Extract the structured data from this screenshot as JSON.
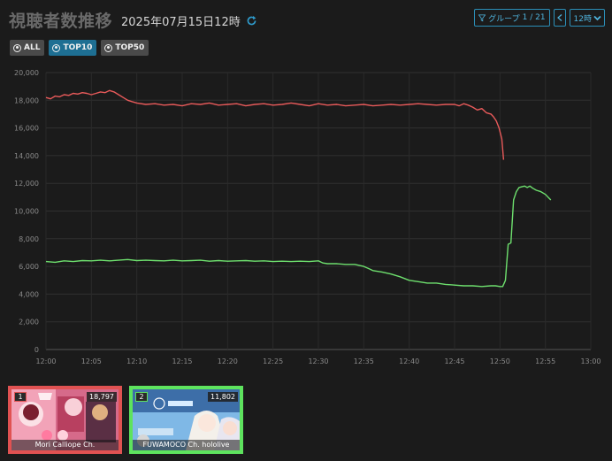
{
  "header": {
    "title": "視聴者数推移",
    "datetime": "2025年07月15日12時"
  },
  "controls": {
    "group_label": "グループ",
    "group_page": "1 / 21",
    "hour_selected": "12時"
  },
  "filters": [
    {
      "label": "ALL",
      "active": false
    },
    {
      "label": "TOP10",
      "active": true
    },
    {
      "label": "TOP50",
      "active": false
    }
  ],
  "colors": {
    "series_1": "#e85a5a",
    "series_2": "#6ee06e",
    "accent": "#2b8fb8"
  },
  "chart_data": {
    "type": "line",
    "title": "",
    "xlabel": "",
    "ylabel": "",
    "xlim": [
      "12:00",
      "13:00"
    ],
    "ylim": [
      0,
      20000
    ],
    "grid": true,
    "x_ticks": [
      "12:00",
      "12:05",
      "12:10",
      "12:15",
      "12:20",
      "12:25",
      "12:30",
      "12:35",
      "12:40",
      "12:45",
      "12:50",
      "12:55",
      "13:00"
    ],
    "y_ticks": [
      "0",
      "2,000",
      "4,000",
      "6,000",
      "8,000",
      "10,000",
      "12,000",
      "14,000",
      "16,000",
      "18,000",
      "20,000"
    ],
    "series": [
      {
        "color": "#e85a5a",
        "x": [
          0,
          0.5,
          1,
          1.5,
          2,
          2.5,
          3,
          3.5,
          4,
          4.5,
          5,
          5.5,
          6,
          6.5,
          7,
          7.5,
          8,
          8.5,
          9,
          9.5,
          10,
          11,
          12,
          13,
          14,
          15,
          16,
          17,
          18,
          19,
          20,
          21,
          22,
          23,
          24,
          25,
          26,
          27,
          28,
          29,
          30,
          31,
          32,
          33,
          34,
          35,
          36,
          37,
          38,
          39,
          40,
          41,
          42,
          43,
          44,
          45,
          45.5,
          46,
          46.5,
          47,
          47.5,
          48,
          48.5,
          49,
          49.3,
          49.6,
          49.9,
          50.2,
          50.4
        ],
        "values": [
          18200,
          18100,
          18300,
          18250,
          18400,
          18350,
          18500,
          18450,
          18550,
          18500,
          18400,
          18500,
          18600,
          18550,
          18700,
          18600,
          18400,
          18200,
          18000,
          17900,
          17800,
          17700,
          17750,
          17650,
          17700,
          17600,
          17750,
          17700,
          17800,
          17650,
          17700,
          17750,
          17600,
          17700,
          17750,
          17650,
          17700,
          17800,
          17700,
          17600,
          17750,
          17650,
          17700,
          17600,
          17650,
          17700,
          17600,
          17650,
          17700,
          17650,
          17700,
          17750,
          17700,
          17650,
          17700,
          17700,
          17600,
          17750,
          17650,
          17500,
          17300,
          17400,
          17100,
          17000,
          16800,
          16500,
          16000,
          15200,
          13700
        ]
      },
      {
        "color": "#6ee06e",
        "x": [
          0,
          1,
          2,
          3,
          4,
          5,
          6,
          7,
          8,
          9,
          10,
          11,
          12,
          13,
          14,
          15,
          16,
          17,
          18,
          19,
          20,
          21,
          22,
          23,
          24,
          25,
          26,
          27,
          28,
          29,
          30,
          30.5,
          31,
          32,
          33,
          34,
          35,
          35.5,
          36,
          37,
          38,
          39,
          40,
          41,
          42,
          43,
          44,
          45,
          46,
          47,
          48,
          49,
          49.5,
          50,
          50.3,
          50.6,
          50.9,
          51.2,
          51.5,
          51.8,
          52.1,
          52.4,
          52.7,
          53,
          53.3,
          53.6,
          54,
          54.5,
          55,
          55.3,
          55.6
        ],
        "values": [
          6350,
          6300,
          6400,
          6350,
          6420,
          6400,
          6450,
          6400,
          6450,
          6500,
          6420,
          6450,
          6420,
          6400,
          6450,
          6400,
          6420,
          6450,
          6380,
          6420,
          6380,
          6400,
          6420,
          6380,
          6400,
          6350,
          6380,
          6350,
          6380,
          6350,
          6400,
          6250,
          6200,
          6200,
          6150,
          6150,
          6000,
          5850,
          5700,
          5600,
          5450,
          5250,
          5000,
          4900,
          4800,
          4800,
          4700,
          4650,
          4600,
          4600,
          4550,
          4600,
          4600,
          4550,
          4550,
          5000,
          7600,
          7700,
          10800,
          11400,
          11700,
          11750,
          11800,
          11700,
          11800,
          11650,
          11500,
          11400,
          11200,
          11000,
          10800
        ]
      }
    ]
  },
  "thumbnails": [
    {
      "rank": "1",
      "viewers": "18,797",
      "channel": "Mori Calliope Ch.",
      "color": "#e05252"
    },
    {
      "rank": "2",
      "viewers": "11,802",
      "channel": "FUWAMOCO Ch. hololive",
      "color": "#5ee35e"
    }
  ]
}
